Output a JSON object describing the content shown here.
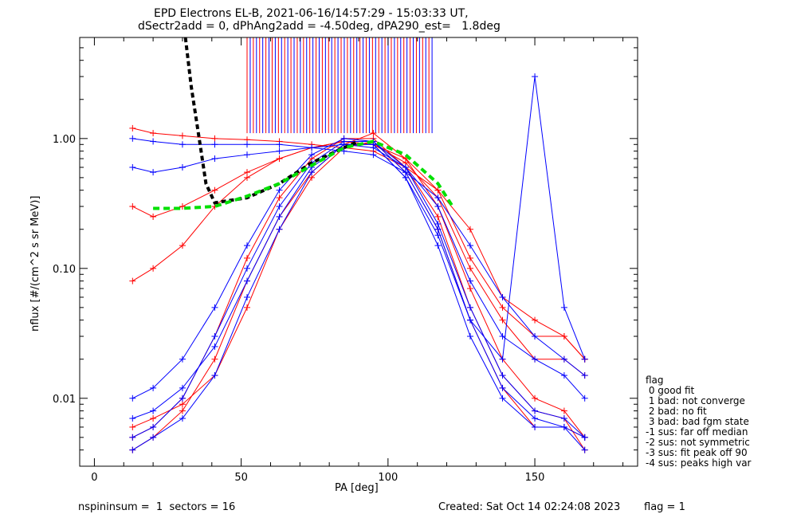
{
  "header": {
    "title_line1": "EPD Electrons EL-B, 2021-06-16/14:57:29 - 15:03:33 UT,",
    "title_line2": "dSectr2add = 0, dPhAng2add = -4.50deg, dPA290_est=   1.8deg"
  },
  "footer": {
    "left": "nspininsum =  1  sectors = 16",
    "created": "Created: Sat Oct 14 02:24:08 2023",
    "flag": "flag = 1"
  },
  "legend": {
    "title": "flag",
    "items": [
      " 0 good fit",
      " 1 bad: not converge",
      " 2 bad: no fit",
      " 3 bad: bad fgm state",
      "-1 sus: far off median",
      "-2 sus: not symmetric",
      "-3 sus: fit peak off 90",
      "-4 sus: peaks high var"
    ]
  },
  "chart_data": {
    "type": "line",
    "title": "",
    "xlabel": "PA [deg]",
    "ylabel": "nflux [#/(cm^2 s sr MeV)]",
    "xlim": [
      -5,
      185
    ],
    "ylim": [
      0.003,
      6
    ],
    "yscale": "log",
    "xticks": [
      0,
      50,
      100,
      150
    ],
    "yticks": [
      0.01,
      0.1,
      1.0
    ],
    "ytick_labels": [
      "0.01",
      "0.10",
      "1.00"
    ],
    "colors": {
      "spectrum_red": "#ff0000",
      "spectrum_blue": "#0000ff",
      "fit": "#00e000",
      "median": "#000000"
    },
    "pa_bins": [
      13,
      20,
      30,
      41,
      52,
      63,
      74,
      85,
      95,
      106,
      117,
      128,
      139,
      150,
      160,
      167
    ],
    "series": [
      {
        "color": "red",
        "x": [
          13,
          20,
          30,
          41,
          52,
          63,
          74,
          85,
          95,
          106,
          117,
          128,
          139,
          150,
          160,
          167
        ],
        "y": [
          1.2,
          1.1,
          1.05,
          1.0,
          0.98,
          0.95,
          0.9,
          0.85,
          0.8,
          0.6,
          0.4,
          0.2,
          0.06,
          0.04,
          0.03,
          0.02
        ]
      },
      {
        "color": "red",
        "x": [
          13,
          20,
          30,
          41,
          52,
          63,
          74,
          85,
          95,
          106,
          117,
          128,
          139,
          150,
          160,
          167
        ],
        "y": [
          0.3,
          0.25,
          0.3,
          0.4,
          0.55,
          0.7,
          0.85,
          0.95,
          0.9,
          0.7,
          0.4,
          0.12,
          0.05,
          0.03,
          0.03,
          0.02
        ]
      },
      {
        "color": "red",
        "x": [
          13,
          20,
          30,
          41,
          52,
          63,
          74,
          85,
          95,
          106,
          117,
          128,
          139,
          150,
          160,
          167
        ],
        "y": [
          0.004,
          0.005,
          0.008,
          0.02,
          0.08,
          0.25,
          0.55,
          0.9,
          1.1,
          0.7,
          0.3,
          0.07,
          0.02,
          0.01,
          0.008,
          0.005
        ]
      },
      {
        "color": "red",
        "x": [
          13,
          20,
          30,
          41,
          52,
          63,
          74,
          85,
          95,
          106,
          117,
          128,
          139,
          150,
          160,
          167
        ],
        "y": [
          0.005,
          0.006,
          0.01,
          0.03,
          0.12,
          0.35,
          0.7,
          1.0,
          1.0,
          0.6,
          0.25,
          0.05,
          0.015,
          0.008,
          0.007,
          0.004
        ]
      },
      {
        "color": "red",
        "x": [
          13,
          20,
          30,
          41,
          52,
          63,
          74,
          85,
          95,
          106,
          117,
          128,
          139,
          150,
          160,
          167
        ],
        "y": [
          0.08,
          0.1,
          0.15,
          0.3,
          0.5,
          0.7,
          0.85,
          0.95,
          0.9,
          0.65,
          0.35,
          0.1,
          0.04,
          0.02,
          0.02,
          0.015
        ]
      },
      {
        "color": "red",
        "x": [
          13,
          20,
          30,
          41,
          52,
          63,
          74,
          85,
          95,
          106,
          117,
          128,
          139,
          150,
          160,
          167
        ],
        "y": [
          0.006,
          0.007,
          0.009,
          0.015,
          0.05,
          0.2,
          0.5,
          0.85,
          0.95,
          0.55,
          0.2,
          0.04,
          0.012,
          0.006,
          0.006,
          0.005
        ]
      },
      {
        "color": "blue",
        "x": [
          13,
          20,
          30,
          41,
          52,
          63,
          74,
          85,
          95,
          106,
          117,
          128,
          139,
          150,
          160,
          167
        ],
        "y": [
          1.0,
          0.95,
          0.9,
          0.9,
          0.9,
          0.9,
          0.85,
          0.8,
          0.75,
          0.55,
          0.35,
          0.15,
          0.06,
          0.03,
          0.02,
          0.015
        ]
      },
      {
        "color": "blue",
        "x": [
          13,
          20,
          30,
          41,
          52,
          63,
          74,
          85,
          95,
          106,
          117,
          128,
          139,
          150,
          160,
          167
        ],
        "y": [
          0.005,
          0.006,
          0.01,
          0.03,
          0.1,
          0.3,
          0.65,
          0.95,
          0.95,
          0.6,
          0.22,
          0.05,
          0.015,
          0.008,
          0.007,
          0.005
        ]
      },
      {
        "color": "blue",
        "x": [
          13,
          20,
          30,
          41,
          52,
          63,
          74,
          85,
          95,
          106,
          117,
          128,
          139,
          150,
          160,
          167
        ],
        "y": [
          0.004,
          0.005,
          0.007,
          0.015,
          0.06,
          0.2,
          0.55,
          0.9,
          0.9,
          0.5,
          0.15,
          0.03,
          0.01,
          0.006,
          0.006,
          0.004
        ]
      },
      {
        "color": "blue",
        "x": [
          13,
          20,
          30,
          41,
          52,
          63,
          74,
          85,
          95,
          106,
          117,
          128,
          139,
          150,
          160,
          167
        ],
        "y": [
          0.6,
          0.55,
          0.6,
          0.7,
          0.75,
          0.8,
          0.85,
          0.9,
          0.85,
          0.6,
          0.3,
          0.08,
          0.03,
          0.02,
          0.015,
          0.01
        ]
      },
      {
        "color": "blue",
        "x": [
          13,
          20,
          30,
          41,
          52,
          63,
          74,
          85,
          95,
          106,
          117,
          128,
          139,
          150,
          160,
          167
        ],
        "y": [
          0.01,
          0.012,
          0.02,
          0.05,
          0.15,
          0.4,
          0.75,
          1.0,
          0.95,
          0.55,
          0.2,
          0.04,
          0.02,
          3.0,
          0.05,
          0.02
        ]
      },
      {
        "color": "blue",
        "x": [
          13,
          20,
          30,
          41,
          52,
          63,
          74,
          85,
          95,
          106,
          117,
          128,
          139,
          150,
          160,
          167
        ],
        "y": [
          0.007,
          0.008,
          0.012,
          0.025,
          0.08,
          0.25,
          0.6,
          0.9,
          0.9,
          0.5,
          0.18,
          0.04,
          0.012,
          0.007,
          0.006,
          0.005
        ]
      }
    ],
    "fit_curve": {
      "x": [
        20,
        30,
        41,
        52,
        63,
        74,
        85,
        95,
        106,
        117,
        122
      ],
      "y": [
        0.29,
        0.29,
        0.3,
        0.36,
        0.45,
        0.62,
        0.85,
        0.95,
        0.75,
        0.45,
        0.3
      ]
    },
    "median_curve": {
      "x": [
        31,
        33,
        36,
        38,
        41,
        52,
        63,
        74,
        85,
        90
      ],
      "y": [
        6.0,
        2.5,
        0.9,
        0.45,
        0.32,
        0.35,
        0.45,
        0.65,
        0.85,
        0.95
      ]
    },
    "spike_lines": {
      "x_from": 52,
      "x_to": 115,
      "y_base": 1.1,
      "y_top": 6
    }
  }
}
